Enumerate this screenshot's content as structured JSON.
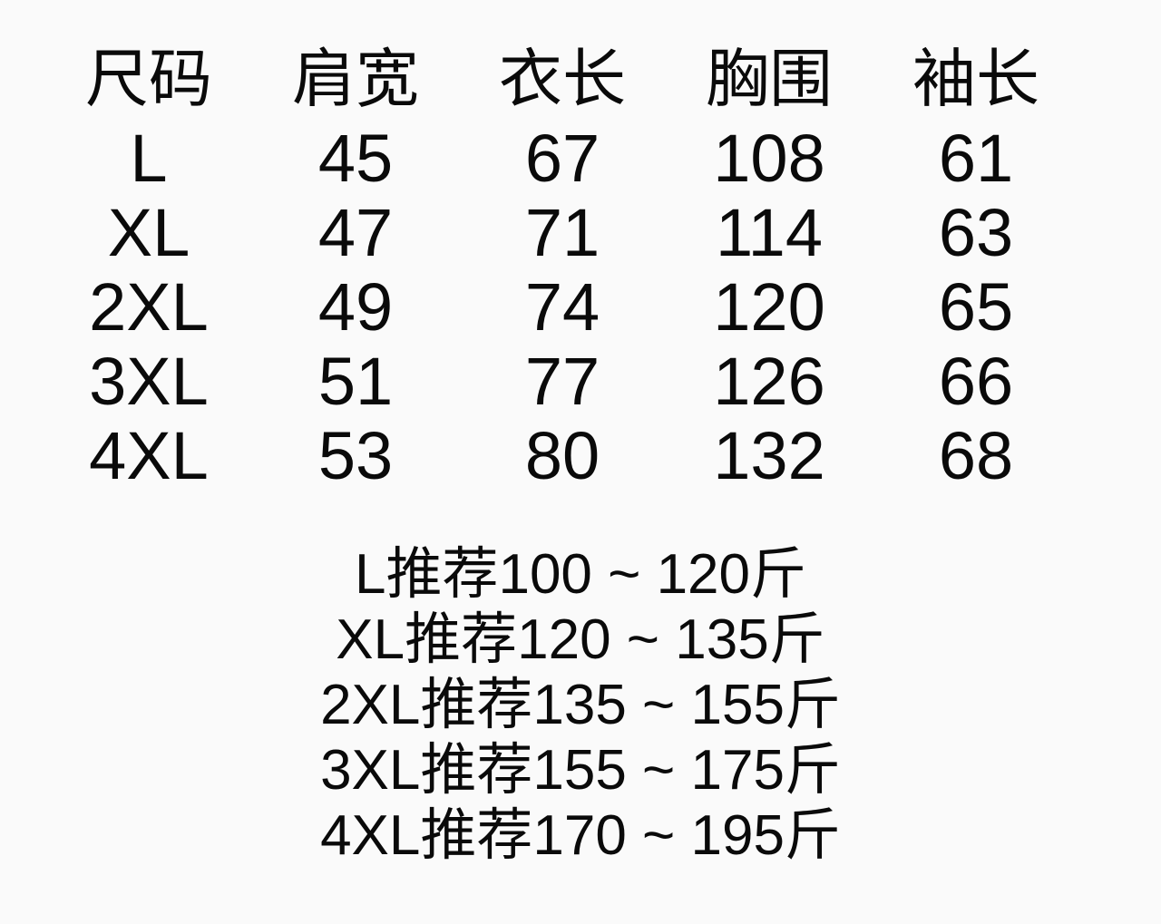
{
  "colors": {
    "background": "#fafafa",
    "text": "#0a0a0a"
  },
  "chart_data": {
    "type": "table",
    "columns": [
      "尺码",
      "肩宽",
      "衣长",
      "胸围",
      "袖长"
    ],
    "rows": [
      [
        "L",
        "45",
        "67",
        "108",
        "61"
      ],
      [
        "XL",
        "47",
        "71",
        "114",
        "63"
      ],
      [
        "2XL",
        "49",
        "74",
        "120",
        "65"
      ],
      [
        "3XL",
        "51",
        "77",
        "126",
        "66"
      ],
      [
        "4XL",
        "53",
        "80",
        "132",
        "68"
      ]
    ],
    "annotations": [
      "L推荐100 ~ 120斤",
      "XL推荐120 ~ 135斤",
      "2XL推荐135 ~ 155斤",
      "3XL推荐155 ~ 175斤",
      "4XL推荐170 ~ 195斤"
    ]
  }
}
